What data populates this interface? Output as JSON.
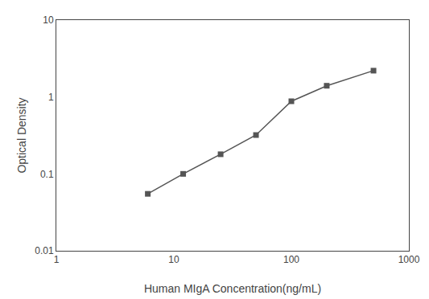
{
  "chart_data": {
    "type": "line",
    "x": [
      6,
      12,
      25,
      50,
      100,
      200,
      500
    ],
    "values": [
      0.055,
      0.1,
      0.18,
      0.32,
      0.88,
      1.4,
      2.2
    ],
    "xlabel": "Human MIgA Concentration(ng/mL)",
    "ylabel": "Optical Density",
    "xlim": [
      1,
      1000
    ],
    "ylim": [
      0.01,
      10
    ],
    "xticks": [
      1,
      10,
      100,
      1000
    ],
    "yticks": [
      0.01,
      0.1,
      1,
      10
    ],
    "log": true,
    "grid": false,
    "color": "#555555",
    "marker": "square"
  }
}
